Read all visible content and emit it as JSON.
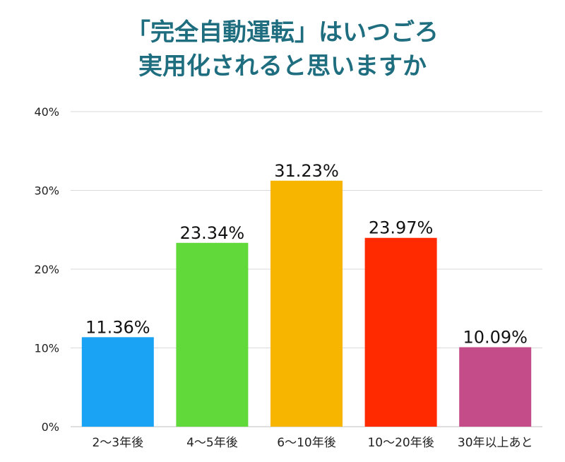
{
  "chart_data": {
    "type": "bar",
    "title_lines": [
      "「完全自動運転」はいつごろ",
      "実用化されると思いますか"
    ],
    "categories": [
      "2〜3年後",
      "4〜5年後",
      "6〜10年後",
      "10〜20年後",
      "30年以上あと"
    ],
    "values": [
      11.36,
      23.34,
      31.23,
      23.97,
      10.09
    ],
    "value_labels": [
      "11.36%",
      "23.34%",
      "31.23%",
      "23.97%",
      "10.09%"
    ],
    "bar_colors": [
      "#1aa3f5",
      "#62d93a",
      "#f7b500",
      "#ff2a00",
      "#c44c88"
    ],
    "ylim": [
      0,
      40
    ],
    "yticks": [
      0,
      10,
      20,
      30,
      40
    ],
    "ytick_labels": [
      "0%",
      "10%",
      "20%",
      "30%",
      "40%"
    ],
    "grid": true,
    "xlabel": "",
    "ylabel": ""
  },
  "colors": {
    "title": "#1f6e7f",
    "grid": "#d9d9d9",
    "axis": "#bfbfbf"
  }
}
